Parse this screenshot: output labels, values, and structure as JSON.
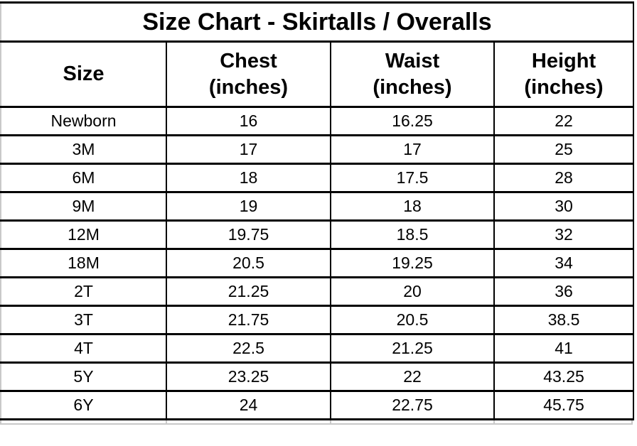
{
  "title": "Size Chart - Skirtalls / Overalls",
  "columns": [
    {
      "line1": "Size",
      "line2": ""
    },
    {
      "line1": "Chest",
      "line2": "(inches)"
    },
    {
      "line1": "Waist",
      "line2": "(inches)"
    },
    {
      "line1": "Height",
      "line2": "(inches)"
    }
  ],
  "chart_data": {
    "type": "table",
    "title": "Size Chart - Skirtalls / Overalls",
    "columns": [
      "Size",
      "Chest (inches)",
      "Waist (inches)",
      "Height (inches)"
    ],
    "rows": [
      [
        "Newborn",
        "16",
        "16.25",
        "22"
      ],
      [
        "3M",
        "17",
        "17",
        "25"
      ],
      [
        "6M",
        "18",
        "17.5",
        "28"
      ],
      [
        "9M",
        "19",
        "18",
        "30"
      ],
      [
        "12M",
        "19.75",
        "18.5",
        "32"
      ],
      [
        "18M",
        "20.5",
        "19.25",
        "34"
      ],
      [
        "2T",
        "21.25",
        "20",
        "36"
      ],
      [
        "3T",
        "21.75",
        "20.5",
        "38.5"
      ],
      [
        "4T",
        "22.5",
        "21.25",
        "41"
      ],
      [
        "5Y",
        "23.25",
        "22",
        "43.25"
      ],
      [
        "6Y",
        "24",
        "22.75",
        "45.75"
      ]
    ],
    "layout": {
      "grid": true,
      "border_color": "#000000",
      "background": "#ffffff",
      "text_color": "#000000"
    }
  }
}
